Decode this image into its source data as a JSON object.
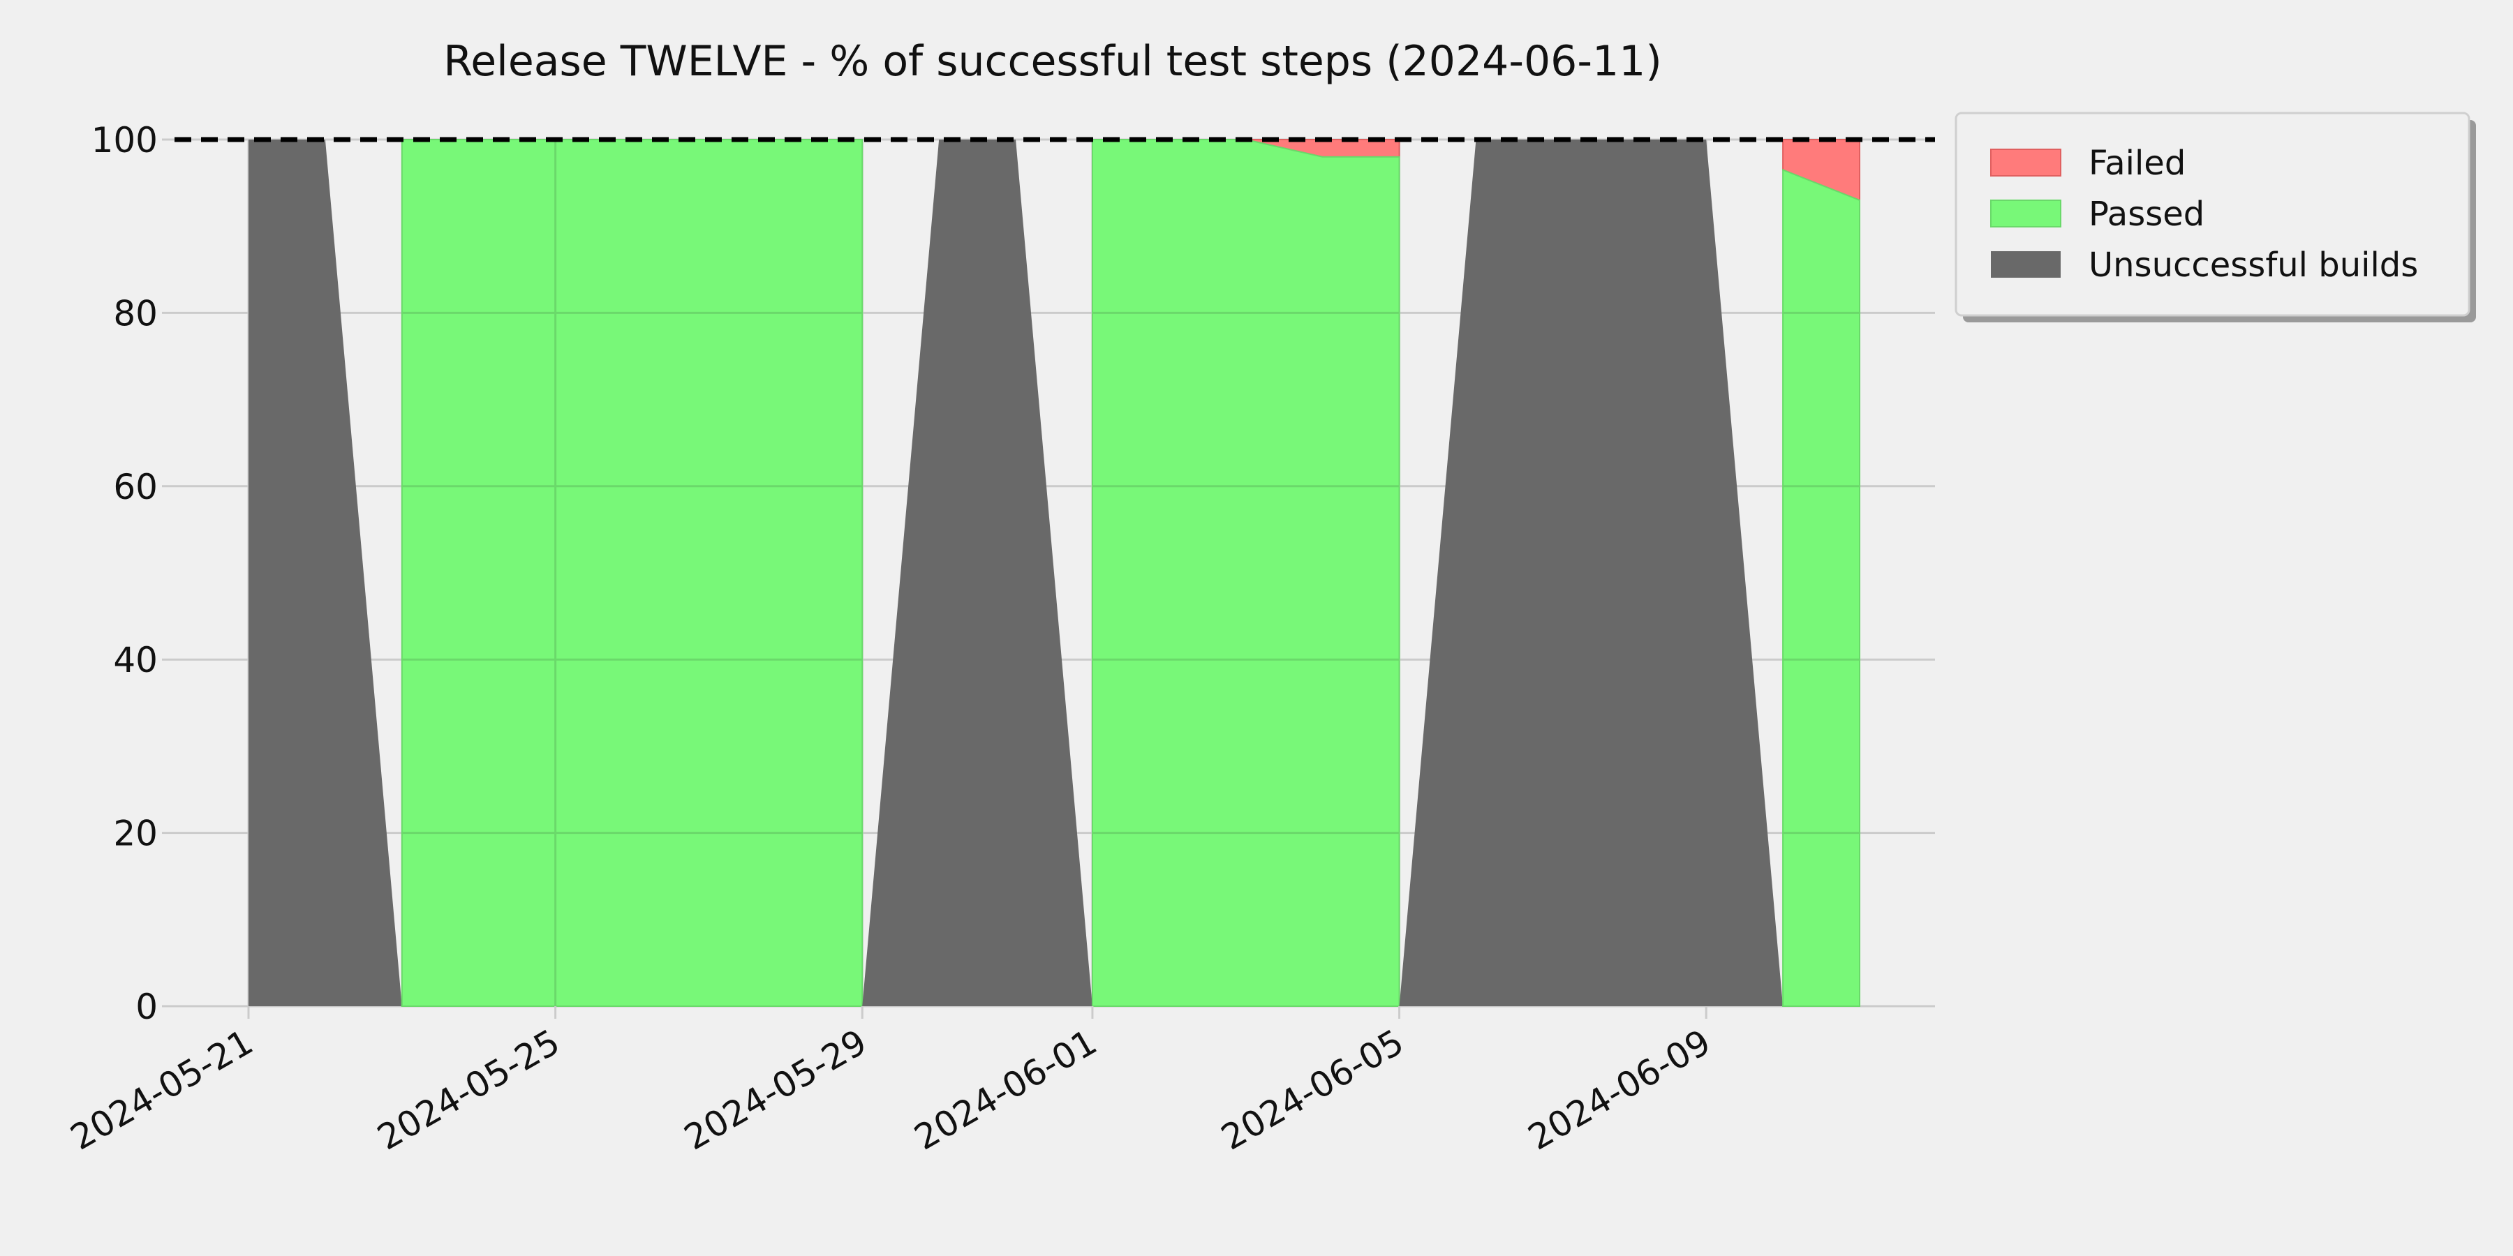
{
  "chart_data": {
    "type": "area",
    "title": "Release TWELVE - % of successful test steps (2024-06-11)",
    "xlabel": "",
    "ylabel": "",
    "x_type": "date",
    "xlim": [
      "2024-05-21",
      "2024-06-11"
    ],
    "ylim": [
      0,
      100
    ],
    "x_ticks": [
      "2024-05-21",
      "2024-05-25",
      "2024-05-29",
      "2024-06-01",
      "2024-06-05",
      "2024-06-09"
    ],
    "y_ticks": [
      0,
      20,
      40,
      60,
      80,
      100
    ],
    "reference_line": {
      "y": 100,
      "style": "dashed",
      "color": "#000000"
    },
    "grid": true,
    "legend_position": "outside-top-right",
    "dates": [
      "2024-05-21",
      "2024-05-22",
      "2024-05-23",
      "2024-05-24",
      "2024-05-25",
      "2024-05-26",
      "2024-05-27",
      "2024-05-28",
      "2024-05-29",
      "2024-05-30",
      "2024-05-31",
      "2024-06-01",
      "2024-06-02",
      "2024-06-03",
      "2024-06-04",
      "2024-06-05",
      "2024-06-06",
      "2024-06-07",
      "2024-06-08",
      "2024-06-09",
      "2024-06-10",
      "2024-06-11"
    ],
    "series": [
      {
        "name": "Failed",
        "color": "#ff7b7b",
        "values": [
          0,
          0,
          0,
          0,
          0,
          0,
          0,
          0,
          0,
          0,
          0,
          0,
          0,
          0,
          2,
          2,
          0,
          0,
          0,
          0,
          3.5,
          7
        ]
      },
      {
        "name": "Passed",
        "color": "#78f878",
        "values": [
          0,
          0,
          100,
          100,
          100,
          100,
          100,
          100,
          100,
          0,
          0,
          100,
          100,
          100,
          98,
          98,
          0,
          0,
          0,
          0,
          96.5,
          93
        ]
      },
      {
        "name": "Unsuccessful builds",
        "color": "#696969",
        "values": [
          100,
          100,
          0,
          0,
          0,
          0,
          0,
          0,
          0,
          100,
          100,
          0,
          0,
          0,
          0,
          0,
          100,
          100,
          100,
          100,
          0,
          0
        ]
      }
    ],
    "segments": [
      {
        "series": "Unsuccessful builds",
        "start": "2024-05-21",
        "end": "2024-05-23"
      },
      {
        "series": "Passed",
        "start": "2024-05-23",
        "end": "2024-05-29"
      },
      {
        "series": "Unsuccessful builds",
        "start": "2024-05-29",
        "end": "2024-06-01"
      },
      {
        "series": "Passed",
        "start": "2024-06-01",
        "end": "2024-06-05"
      },
      {
        "series": "Unsuccessful builds",
        "start": "2024-06-05",
        "end": "2024-06-10"
      },
      {
        "series": "Passed",
        "start": "2024-06-10",
        "end": "2024-06-11"
      }
    ]
  }
}
